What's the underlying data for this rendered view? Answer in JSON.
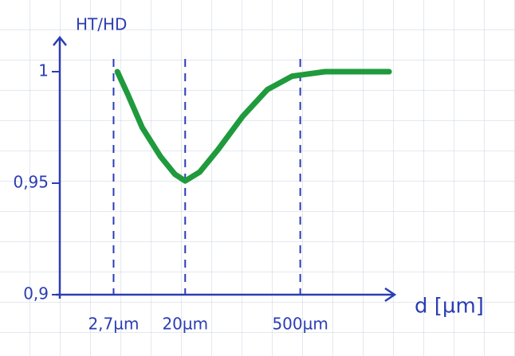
{
  "chart_data": {
    "type": "line",
    "y_label": "HT/HD",
    "x_label": "d [µm]",
    "x": [
      3,
      4,
      6,
      10,
      15,
      20,
      30,
      50,
      100,
      200,
      400,
      1000,
      6000
    ],
    "values": [
      1.0,
      0.99,
      0.975,
      0.962,
      0.954,
      0.951,
      0.955,
      0.965,
      0.98,
      0.992,
      0.998,
      1.0,
      1.0
    ],
    "color": "#1f9a3c",
    "axis_color": "#2b3db3",
    "xscale": "log",
    "xlim": [
      0.6,
      7000
    ],
    "xticks": [
      {
        "value": 2.7,
        "label": "2,7µm"
      },
      {
        "value": 20,
        "label": "20µm"
      },
      {
        "value": 500,
        "label": "500µm"
      }
    ],
    "ylim": [
      0.9,
      1.01
    ],
    "yticks": [
      {
        "value": 0.9,
        "label": "0,9"
      },
      {
        "value": 0.95,
        "label": "0,95"
      },
      1
    ]
  }
}
